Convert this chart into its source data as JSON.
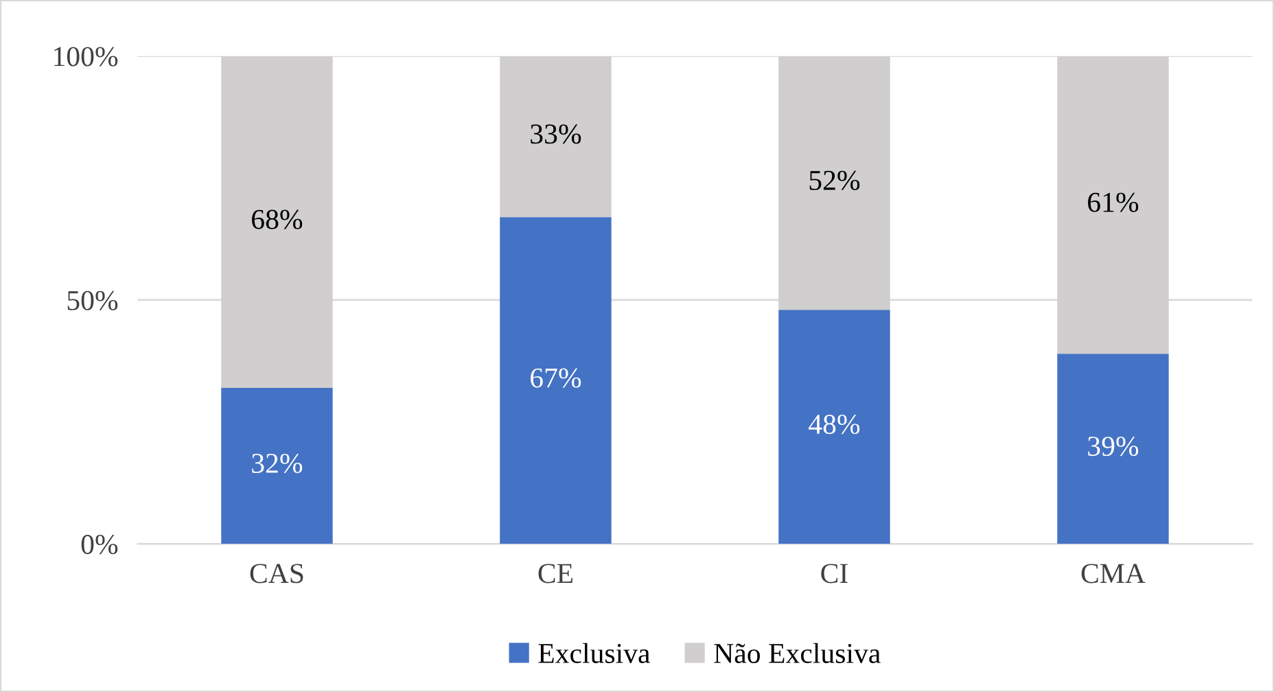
{
  "chart_data": {
    "type": "bar",
    "stacked": true,
    "categories": [
      "CAS",
      "CE",
      "CI",
      "CMA"
    ],
    "series": [
      {
        "name": "Exclusiva",
        "color": "#4472c4",
        "values": [
          32,
          67,
          48,
          39
        ],
        "value_labels": [
          "32%",
          "67%",
          "48%",
          "39%"
        ]
      },
      {
        "name": "Não Exclusiva",
        "color": "#d0cece",
        "values": [
          68,
          33,
          52,
          61
        ],
        "value_labels": [
          "68%",
          "33%",
          "52%",
          "61%"
        ]
      }
    ],
    "ylim": [
      0,
      100
    ],
    "yticks": [
      {
        "value": 0,
        "label": "0%"
      },
      {
        "value": 50,
        "label": "50%"
      },
      {
        "value": 100,
        "label": "100%"
      }
    ],
    "grid": "y",
    "legend": "bottom"
  }
}
